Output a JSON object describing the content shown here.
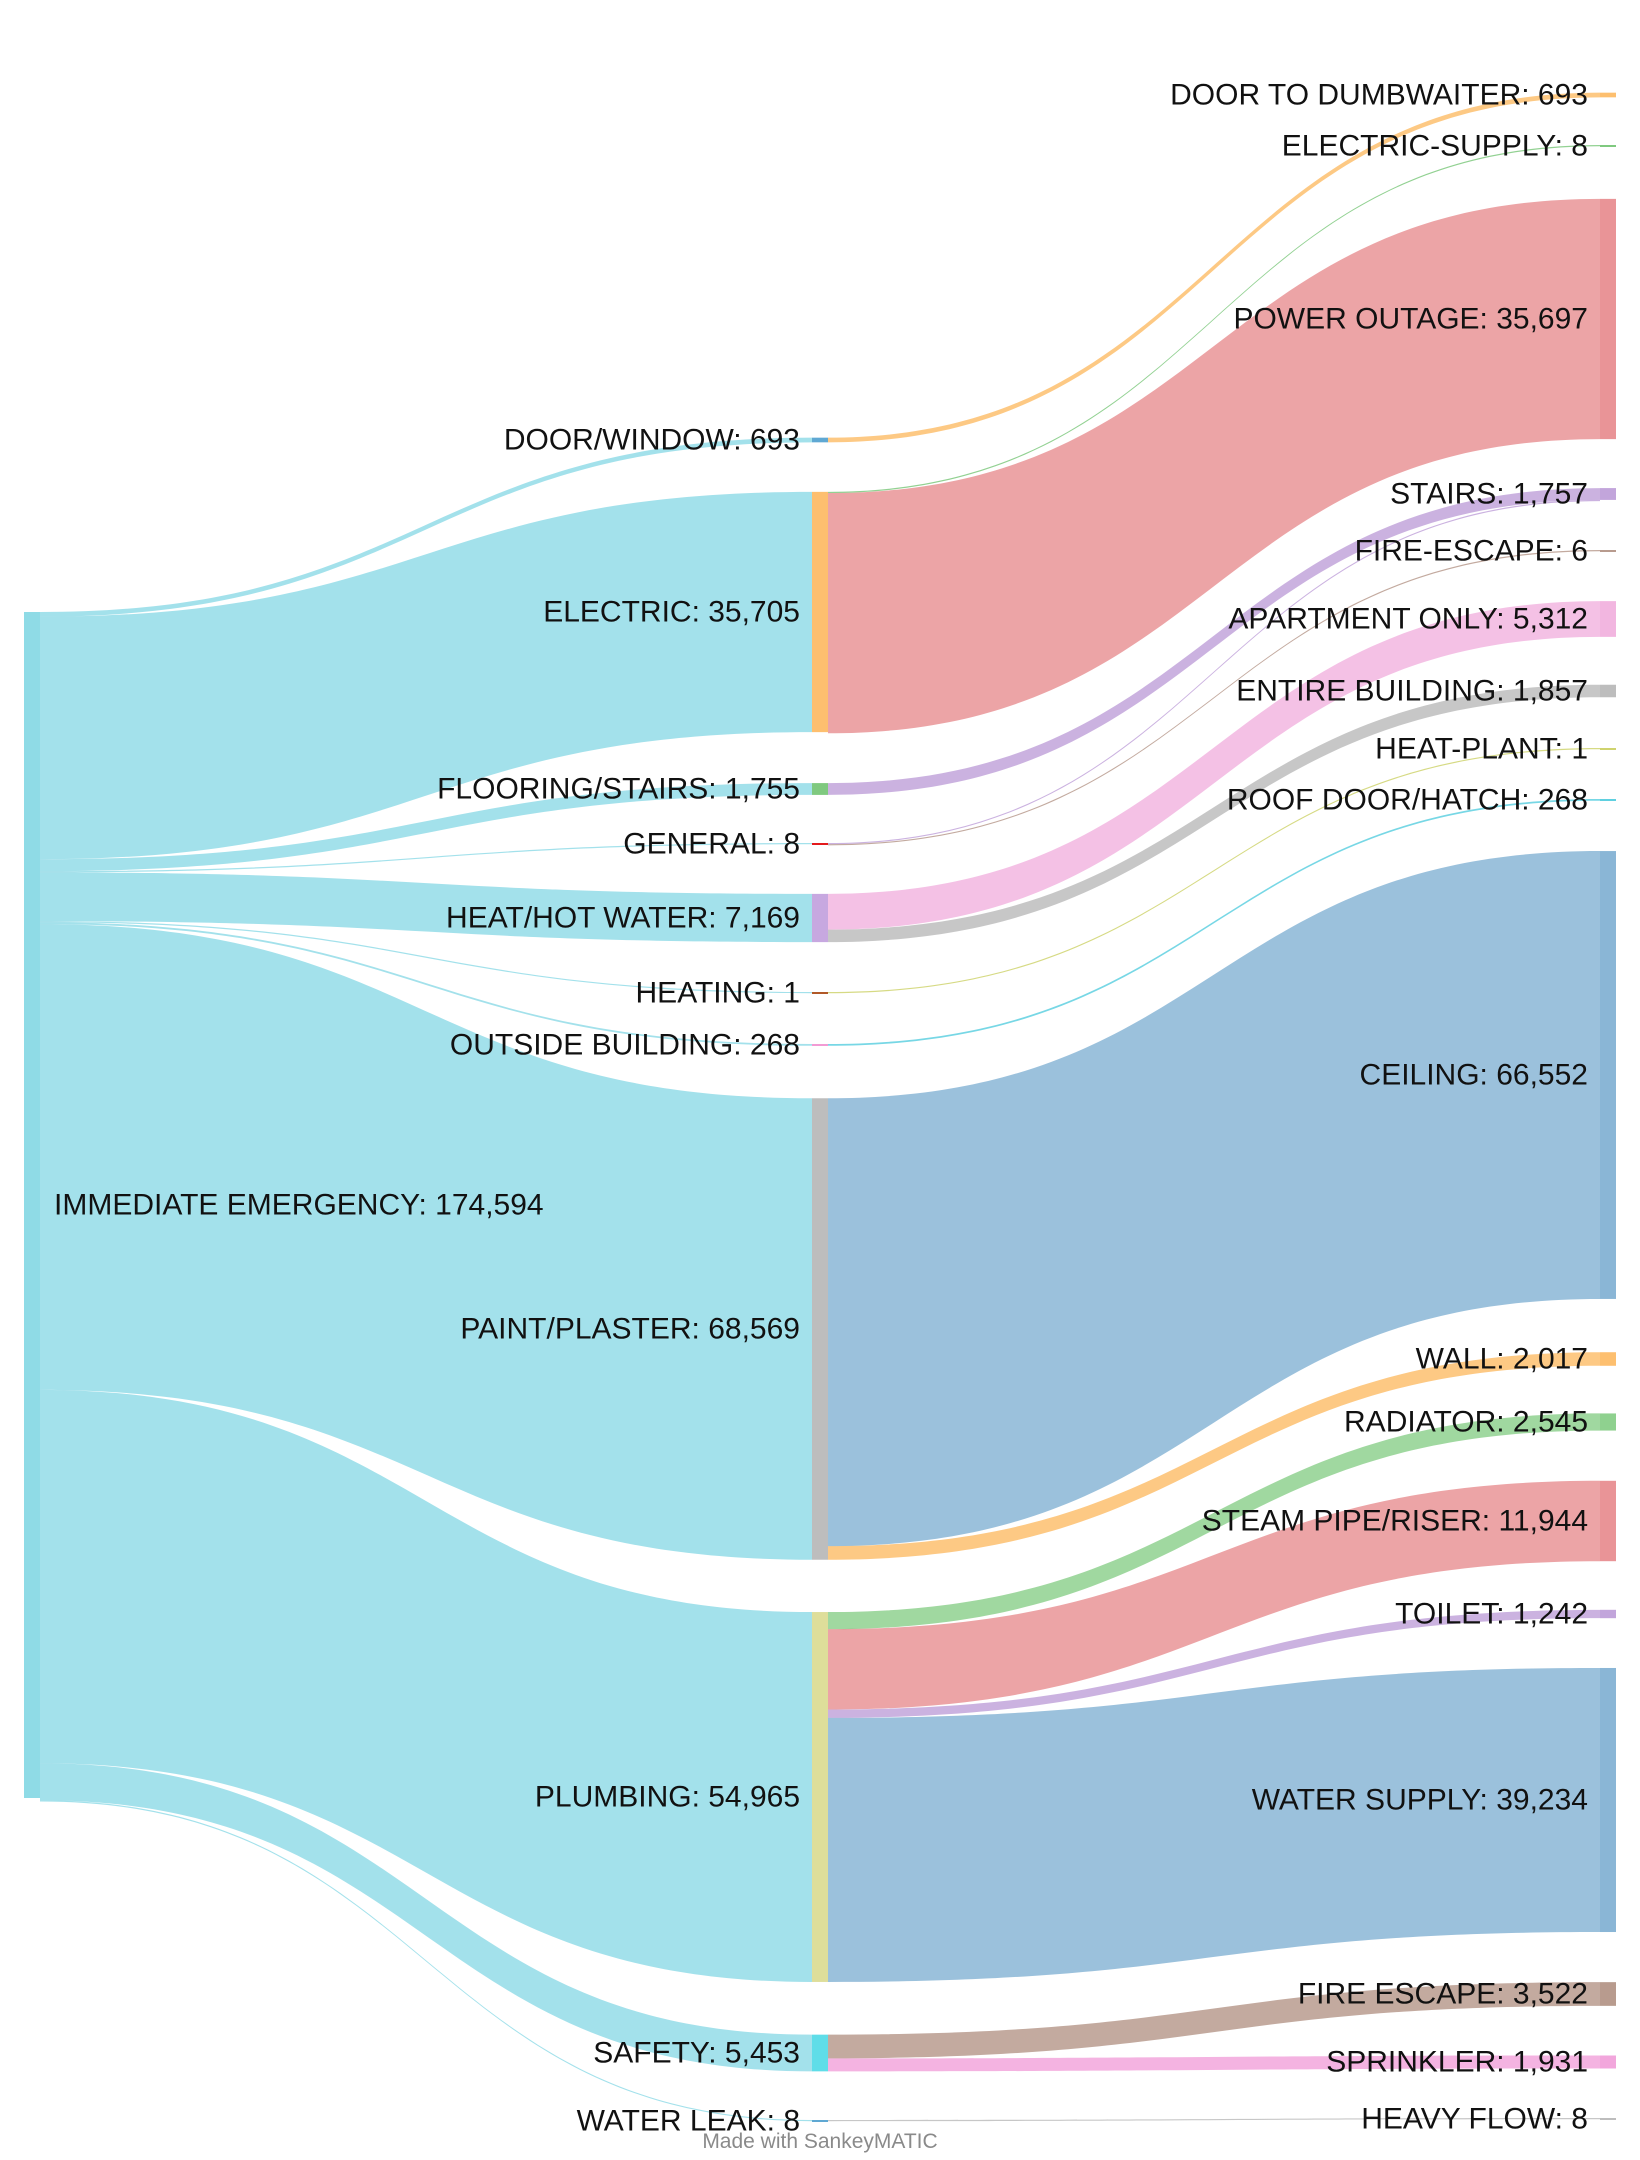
{
  "chart_data": {
    "type": "sankey",
    "credit": "Made with SankeyMATIC",
    "nodes": [
      {
        "id": "immediate_emergency",
        "name": "IMMEDIATE EMERGENCY",
        "value": "174,594",
        "column": 0,
        "color": "#8fdbe6"
      },
      {
        "id": "door_window",
        "name": "DOOR/WINDOW",
        "value": "693",
        "column": 1,
        "color": "#5fa8d3"
      },
      {
        "id": "electric",
        "name": "ELECTRIC",
        "value": "35,705",
        "column": 1,
        "color": "#fdbf6f"
      },
      {
        "id": "flooring_stairs",
        "name": "FLOORING/STAIRS",
        "value": "1,755",
        "column": 1,
        "color": "#7fc97f"
      },
      {
        "id": "general",
        "name": "GENERAL",
        "value": "8",
        "column": 1,
        "color": "#e31a1c"
      },
      {
        "id": "heat_hot_water",
        "name": "HEAT/HOT WATER",
        "value": "7,169",
        "column": 1,
        "color": "#c7a8e0"
      },
      {
        "id": "heating",
        "name": "HEATING",
        "value": "1",
        "column": 1,
        "color": "#b15928"
      },
      {
        "id": "outside_building",
        "name": "OUTSIDE BUILDING",
        "value": "268",
        "column": 1,
        "color": "#f29bd4"
      },
      {
        "id": "paint_plaster",
        "name": "PAINT/PLASTER",
        "value": "68,569",
        "column": 1,
        "color": "#bdbdbd"
      },
      {
        "id": "plumbing",
        "name": "PLUMBING",
        "value": "54,965",
        "column": 1,
        "color": "#dede9a"
      },
      {
        "id": "safety",
        "name": "SAFETY",
        "value": "5,453",
        "column": 1,
        "color": "#5fdde8"
      },
      {
        "id": "water_leak",
        "name": "WATER LEAK",
        "value": "8",
        "column": 1,
        "color": "#5fa8d3"
      },
      {
        "id": "door_to_dumbwaiter",
        "name": "DOOR TO DUMBWAITER",
        "value": "693",
        "column": 2,
        "color": "#fdbf6f"
      },
      {
        "id": "electric_supply",
        "name": "ELECTRIC-SUPPLY",
        "value": "8",
        "column": 2,
        "color": "#7fc97f"
      },
      {
        "id": "power_outage",
        "name": "POWER OUTAGE",
        "value": "35,697",
        "column": 2,
        "color": "#e99497"
      },
      {
        "id": "stairs",
        "name": "STAIRS",
        "value": "1,757",
        "column": 2,
        "color": "#c2a5db"
      },
      {
        "id": "fire_escape_dash",
        "name": "FIRE-ESCAPE",
        "value": "6",
        "column": 2,
        "color": "#b89b8e"
      },
      {
        "id": "apartment_only",
        "name": "APARTMENT ONLY",
        "value": "5,312",
        "column": 2,
        "color": "#f2b6e0"
      },
      {
        "id": "entire_building",
        "name": "ENTIRE BUILDING",
        "value": "1,857",
        "column": 2,
        "color": "#bdbdbd"
      },
      {
        "id": "heat_plant",
        "name": "HEAT-PLANT",
        "value": "1",
        "column": 2,
        "color": "#cfd36e"
      },
      {
        "id": "roof_door_hatch",
        "name": "ROOF DOOR/HATCH",
        "value": "268",
        "column": 2,
        "color": "#5fd0e0"
      },
      {
        "id": "ceiling",
        "name": "CEILING",
        "value": "66,552",
        "column": 2,
        "color": "#8ab6d6"
      },
      {
        "id": "wall",
        "name": "WALL",
        "value": "2,017",
        "column": 2,
        "color": "#fdbf6f"
      },
      {
        "id": "radiator",
        "name": "RADIATOR",
        "value": "2,545",
        "column": 2,
        "color": "#8fd18f"
      },
      {
        "id": "steam_pipe_riser",
        "name": "STEAM PIPE/RISER",
        "value": "11,944",
        "column": 2,
        "color": "#e99497"
      },
      {
        "id": "toilet",
        "name": "TOILET",
        "value": "1,242",
        "column": 2,
        "color": "#c2a5db"
      },
      {
        "id": "water_supply",
        "name": "WATER SUPPLY",
        "value": "39,234",
        "column": 2,
        "color": "#8ab6d6"
      },
      {
        "id": "fire_escape",
        "name": "FIRE ESCAPE",
        "value": "3,522",
        "column": 2,
        "color": "#b89b8e"
      },
      {
        "id": "sprinkler",
        "name": "SPRINKLER",
        "value": "1,931",
        "column": 2,
        "color": "#f2a6dc"
      },
      {
        "id": "heavy_flow",
        "name": "HEAVY FLOW",
        "value": "8",
        "column": 2,
        "color": "#bdbdbd"
      }
    ],
    "links": [
      {
        "source": "immediate_emergency",
        "target": "door_window",
        "value": 693
      },
      {
        "source": "immediate_emergency",
        "target": "electric",
        "value": 35705
      },
      {
        "source": "immediate_emergency",
        "target": "flooring_stairs",
        "value": 1755
      },
      {
        "source": "immediate_emergency",
        "target": "general",
        "value": 8
      },
      {
        "source": "immediate_emergency",
        "target": "heat_hot_water",
        "value": 7169
      },
      {
        "source": "immediate_emergency",
        "target": "heating",
        "value": 1
      },
      {
        "source": "immediate_emergency",
        "target": "outside_building",
        "value": 268
      },
      {
        "source": "immediate_emergency",
        "target": "paint_plaster",
        "value": 68569
      },
      {
        "source": "immediate_emergency",
        "target": "plumbing",
        "value": 54965
      },
      {
        "source": "immediate_emergency",
        "target": "safety",
        "value": 5453
      },
      {
        "source": "immediate_emergency",
        "target": "water_leak",
        "value": 8
      },
      {
        "source": "door_window",
        "target": "door_to_dumbwaiter",
        "value": 693
      },
      {
        "source": "electric",
        "target": "electric_supply",
        "value": 8
      },
      {
        "source": "electric",
        "target": "power_outage",
        "value": 35697
      },
      {
        "source": "flooring_stairs",
        "target": "stairs",
        "value": 1755
      },
      {
        "source": "general",
        "target": "stairs",
        "value": 2
      },
      {
        "source": "general",
        "target": "fire_escape_dash",
        "value": 6
      },
      {
        "source": "heat_hot_water",
        "target": "apartment_only",
        "value": 5312
      },
      {
        "source": "heat_hot_water",
        "target": "entire_building",
        "value": 1857
      },
      {
        "source": "heating",
        "target": "heat_plant",
        "value": 1
      },
      {
        "source": "outside_building",
        "target": "roof_door_hatch",
        "value": 268
      },
      {
        "source": "paint_plaster",
        "target": "ceiling",
        "value": 66552
      },
      {
        "source": "paint_plaster",
        "target": "wall",
        "value": 2017
      },
      {
        "source": "plumbing",
        "target": "radiator",
        "value": 2545
      },
      {
        "source": "plumbing",
        "target": "steam_pipe_riser",
        "value": 11944
      },
      {
        "source": "plumbing",
        "target": "toilet",
        "value": 1242
      },
      {
        "source": "plumbing",
        "target": "water_supply",
        "value": 39234
      },
      {
        "source": "safety",
        "target": "fire_escape",
        "value": 3522
      },
      {
        "source": "safety",
        "target": "sprinkler",
        "value": 1931
      },
      {
        "source": "water_leak",
        "target": "heavy_flow",
        "value": 8
      }
    ]
  }
}
